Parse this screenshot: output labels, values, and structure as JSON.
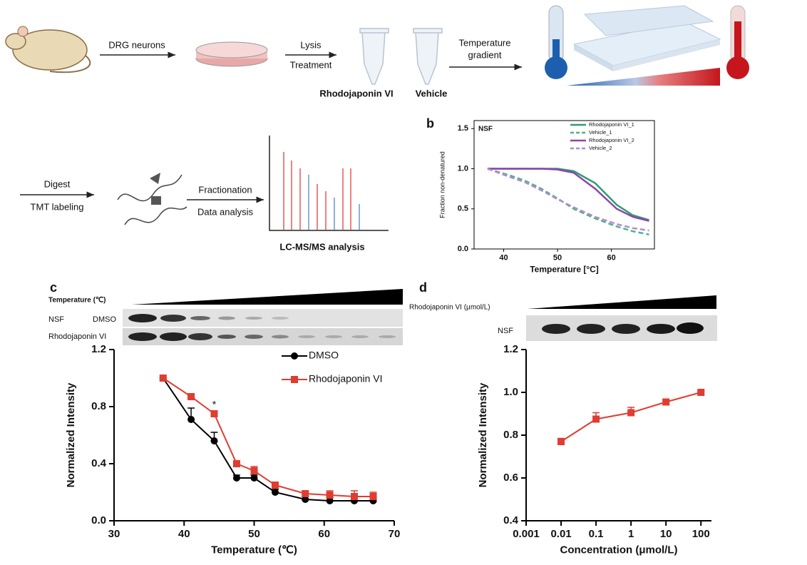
{
  "workflow": {
    "drg": "DRG neurons",
    "lysis": "Lysis",
    "treatment": "Treatment",
    "drug": "Rhodojaponin VI",
    "vehicle": "Vehicle",
    "temp_1": "Temperature",
    "temp_2": "gradient",
    "digest": "Digest",
    "tmt": "TMT labeling",
    "fractionation": "Fractionation",
    "data_analysis": "Data analysis",
    "lcms": "LC-MS/MS analysis"
  },
  "blots": {
    "c_axis": "Temperature (℃)",
    "c_protein": "NSF",
    "c_row_1": "DMSO",
    "c_row_2": "Rhodojaponin VI",
    "d_axis": "Rhodojaponin VI (μmol/L)",
    "d_protein": "NSF"
  },
  "chart_data": [
    {
      "type": "line",
      "panel": "b",
      "title": "NSF",
      "xlabel": "Temperature [°C]",
      "ylabel": "Fraction non-denatured",
      "frame": true,
      "legend": "inside-top-right",
      "x": [
        37,
        41,
        44,
        47,
        50,
        53,
        57,
        61,
        64,
        67
      ],
      "series": [
        {
          "name": "Rhodojaponin VI_1",
          "color": "#2e9e6b",
          "dash": false,
          "values": [
            1.0,
            1.0,
            1.0,
            1.0,
            1.0,
            0.97,
            0.82,
            0.55,
            0.42,
            0.36
          ]
        },
        {
          "name": "Vehicle_1",
          "color": "#4fb487",
          "dash": true,
          "values": [
            1.0,
            0.92,
            0.85,
            0.75,
            0.63,
            0.5,
            0.38,
            0.28,
            0.22,
            0.18
          ]
        },
        {
          "name": "Rhodojaponin VI_2",
          "color": "#8e44ad",
          "dash": false,
          "values": [
            1.0,
            1.0,
            1.0,
            1.0,
            0.99,
            0.95,
            0.75,
            0.5,
            0.4,
            0.35
          ]
        },
        {
          "name": "Vehicle_2",
          "color": "#b58ad0",
          "dash": true,
          "values": [
            1.0,
            0.9,
            0.83,
            0.73,
            0.62,
            0.52,
            0.4,
            0.31,
            0.26,
            0.23
          ]
        }
      ],
      "xlim": [
        34.5,
        68
      ],
      "xticks": [
        40,
        50,
        60
      ],
      "ylim": [
        0,
        1.6
      ],
      "yticks": [
        {
          "value": 0,
          "label": "0.0"
        },
        0.5,
        {
          "value": 1,
          "label": "1.0"
        },
        1.5
      ]
    },
    {
      "type": "line",
      "panel": "c",
      "xlabel": "Temperature (℃)",
      "ylabel": "Normalized Intensity",
      "frame": false,
      "legend": "top-right",
      "x": [
        37,
        41,
        44.3,
        47.5,
        50,
        53,
        57.3,
        60.8,
        64.3,
        67
      ],
      "series": [
        {
          "name": "DMSO",
          "color": "#000000",
          "marker": "circle",
          "values": [
            1.0,
            0.71,
            0.56,
            0.3,
            0.3,
            0.2,
            0.15,
            0.14,
            0.14,
            0.14
          ],
          "errors": [
            0,
            0.08,
            0.06,
            0.02,
            0.02,
            0.02,
            0.02,
            0.02,
            0.03,
            0.02
          ]
        },
        {
          "name": "Rhodojaponin VI",
          "color": "#e03c31",
          "marker": "square",
          "values": [
            1.0,
            0.87,
            0.75,
            0.4,
            0.35,
            0.25,
            0.19,
            0.18,
            0.17,
            0.17
          ],
          "errors": [
            0,
            0,
            0.02,
            0.01,
            0.03,
            0.02,
            0.02,
            0.03,
            0.04,
            0.03
          ]
        }
      ],
      "annotations": [
        {
          "text": "*",
          "x": 44.3,
          "y": 0.81
        }
      ],
      "xlim": [
        30,
        70
      ],
      "xticks": [
        30,
        40,
        50,
        60,
        70
      ],
      "ylim": [
        0,
        1.2
      ],
      "yticks": [
        {
          "value": 0,
          "label": "0.0"
        },
        0.4,
        0.8,
        1.2
      ]
    },
    {
      "type": "line",
      "panel": "d",
      "xlabel": "Concentration (μmol/L)",
      "ylabel": "Normalized Intensity",
      "frame": false,
      "xscale": "log",
      "x": [
        0.01,
        0.1,
        1,
        10,
        100
      ],
      "series": [
        {
          "name": "Rhodojaponin VI",
          "color": "#e03c31",
          "marker": "square",
          "values": [
            0.77,
            0.875,
            0.905,
            0.955,
            1.0
          ],
          "errors": [
            0.015,
            0.03,
            0.025,
            0.01,
            0.005
          ]
        }
      ],
      "xlim": [
        0.001,
        200
      ],
      "xticks": [
        0.001,
        0.01,
        0.1,
        1,
        10,
        100
      ],
      "ylim": [
        0.4,
        1.2
      ],
      "yticks": [
        0.4,
        0.6,
        0.8,
        {
          "value": 1,
          "label": "1.0"
        },
        1.2
      ]
    }
  ]
}
